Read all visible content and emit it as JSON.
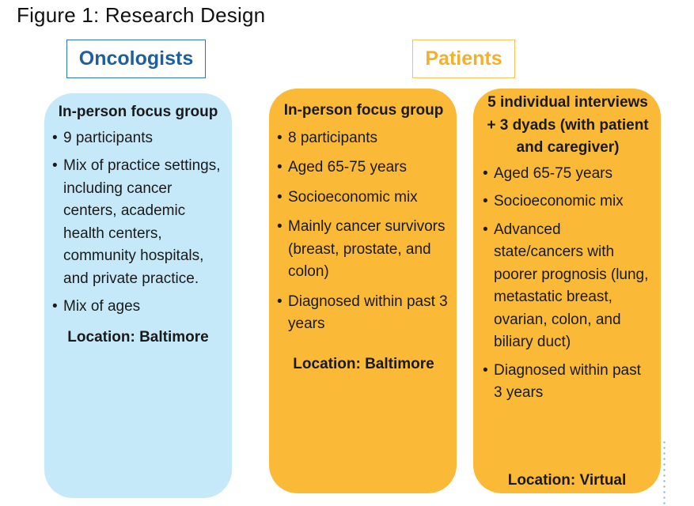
{
  "figure_title": "Figure 1: Research Design",
  "headers": {
    "oncologists": "Oncologists",
    "patients": "Patients"
  },
  "columns": {
    "oncologists": {
      "heading": "In-person focus group",
      "bullets": [
        "9 participants",
        "Mix of practice settings, including cancer centers, academic health centers, community hospitals, and private practice.",
        "Mix of ages"
      ],
      "location": "Location: Baltimore"
    },
    "patients_focus": {
      "heading": "In-person focus group",
      "bullets": [
        "8 participants",
        "Aged 65-75 years",
        "Socioeconomic mix",
        "Mainly cancer survivors (breast, prostate, and colon)",
        "Diagnosed within past 3 years"
      ],
      "location": "Location: Baltimore"
    },
    "patients_interviews": {
      "heading": "5 individual interviews + 3 dyads (with patient and caregiver)",
      "bullets": [
        "Aged 65-75 years",
        "Socioeconomic mix",
        "Advanced state/cancers with poorer prognosis (lung, metastatic breast, ovarian, colon, and biliary duct)",
        "Diagnosed within past 3 years"
      ],
      "location": "Location: Virtual"
    }
  },
  "colors": {
    "oncologists_header": "#1f5f9e",
    "patients_header": "#f3b12b",
    "oncologists_fill": "#c5e9f9",
    "patients_fill": "#fab937"
  }
}
